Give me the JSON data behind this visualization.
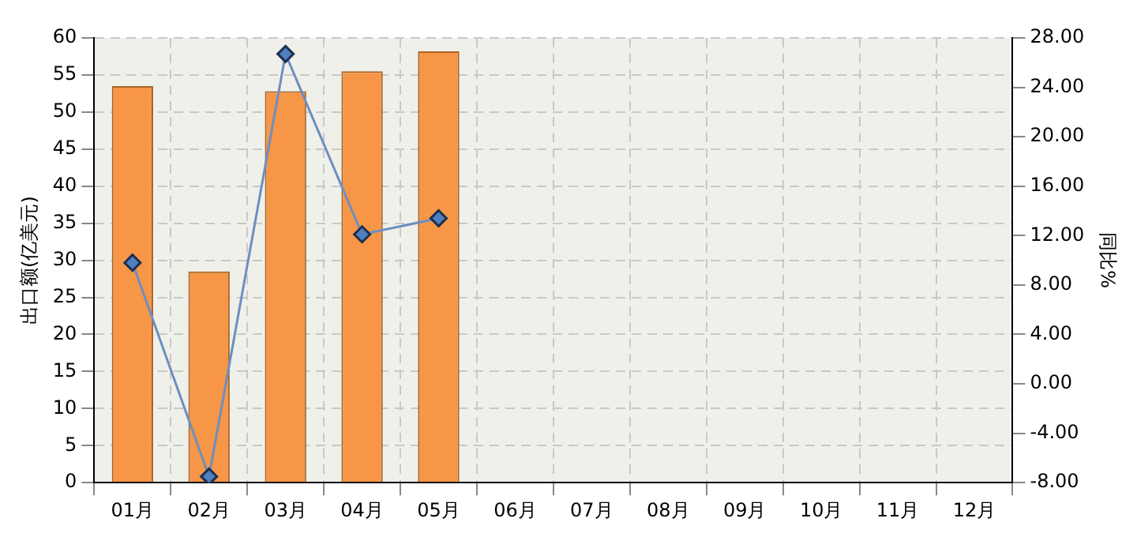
{
  "chart_data": {
    "type": "bar",
    "ylabel": "出口额(亿美元)",
    "y2label": "同比%",
    "categories": [
      "01月",
      "02月",
      "03月",
      "04月",
      "05月",
      "06月",
      "07月",
      "08月",
      "09月",
      "10月",
      "11月",
      "12月"
    ],
    "series": [
      {
        "color": "#f79646",
        "values": [
          53.5,
          28.5,
          52.8,
          55.5,
          58.2,
          null,
          null,
          null,
          null,
          null,
          null,
          null
        ]
      },
      {
        "type": "line",
        "axis": "y2",
        "color": "#6d8fc0",
        "marker": "diamond",
        "values": [
          9.8,
          -7.5,
          26.7,
          12.1,
          13.4,
          null,
          null,
          null,
          null,
          null,
          null,
          null
        ]
      }
    ],
    "ylim": [
      0,
      60
    ],
    "yticks": [
      0,
      5,
      10,
      15,
      20,
      25,
      30,
      35,
      40,
      45,
      50,
      55,
      60
    ],
    "y2lim": [
      -8,
      28
    ],
    "y2ticks": [
      {
        "value": -8,
        "label": "-8.00"
      },
      {
        "value": -4,
        "label": "-4.00"
      },
      {
        "value": 0,
        "label": "0.00"
      },
      {
        "value": 4,
        "label": "4.00"
      },
      {
        "value": 8,
        "label": "8.00"
      },
      {
        "value": 12,
        "label": "12.00"
      },
      {
        "value": 16,
        "label": "16.00"
      },
      {
        "value": 20,
        "label": "20.00"
      },
      {
        "value": 24,
        "label": "24.00"
      },
      {
        "value": 28,
        "label": "28.00"
      }
    ],
    "grid": true,
    "legend": false
  }
}
